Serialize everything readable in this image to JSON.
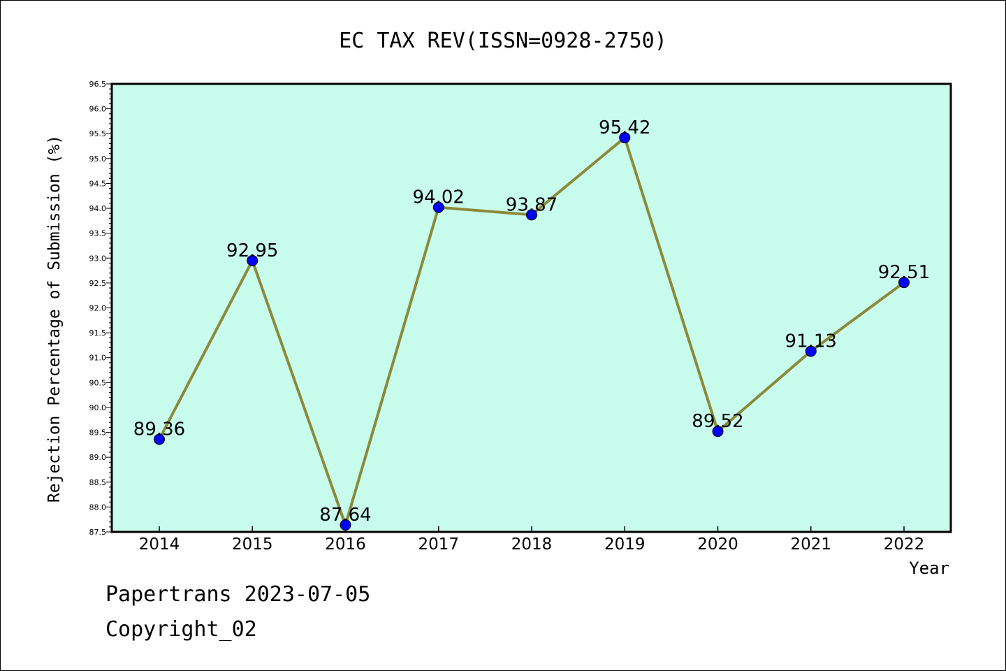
{
  "chart_data": {
    "type": "line",
    "title": "EC TAX REV(ISSN=0928-2750)",
    "xlabel": "Year",
    "ylabel": "Rejection Percentage of Submission (%)",
    "x": [
      "2014",
      "2015",
      "2016",
      "2017",
      "2018",
      "2019",
      "2020",
      "2021",
      "2022"
    ],
    "series": [
      {
        "values": [
          89.36,
          92.95,
          87.64,
          94.02,
          93.87,
          95.42,
          89.52,
          91.13,
          92.51
        ]
      }
    ],
    "data_labels": [
      "89.36",
      "92.95",
      "87.64",
      "94.02",
      "93.87",
      "95.42",
      "89.52",
      "91.13",
      "92.51"
    ],
    "ylim": [
      87.5,
      96.5
    ],
    "yticks": [
      "87.5",
      "88.0",
      "88.5",
      "89.0",
      "89.5",
      "90.0",
      "90.5",
      "91.0",
      "91.5",
      "92.0",
      "92.5",
      "93.0",
      "93.5",
      "94.0",
      "94.5",
      "95.0",
      "95.5",
      "96.0",
      "96.5"
    ],
    "grid": false,
    "colors": {
      "plot_bg": "#c8fced",
      "line": "#8b8a3a",
      "marker": "#0000ff"
    }
  },
  "footer": {
    "line1": "Papertrans 2023-07-05",
    "line2": "Copyright_02"
  }
}
